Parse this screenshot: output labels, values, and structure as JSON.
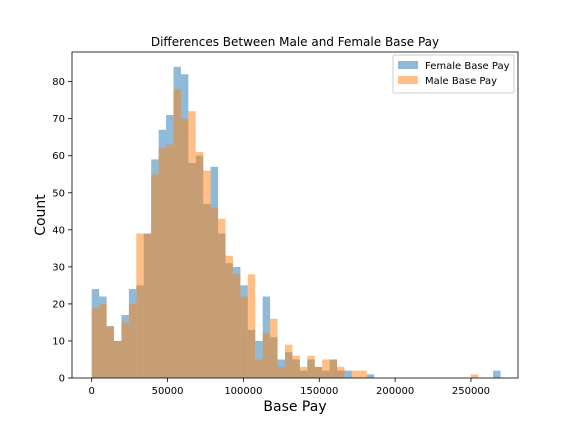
{
  "chart_data": {
    "type": "bar",
    "title": "Differences Between Male and Female Base Pay",
    "xlabel": "Base Pay",
    "ylabel": "Count",
    "xlim": [
      -13000,
      281000
    ],
    "ylim": [
      0,
      88
    ],
    "xticks": [
      0,
      50000,
      100000,
      150000,
      200000,
      250000
    ],
    "xtick_labels": [
      "0",
      "50000",
      "100000",
      "150000",
      "200000",
      "250000"
    ],
    "yticks": [
      0,
      10,
      20,
      30,
      40,
      50,
      60,
      70,
      80
    ],
    "ytick_labels": [
      "0",
      "10",
      "20",
      "30",
      "40",
      "50",
      "60",
      "70",
      "80"
    ],
    "grid": false,
    "legend_position": "top-right",
    "colors": {
      "female": "#1f77b4",
      "male": "#ff7f0e",
      "bar_alpha": 0.5
    },
    "series": [
      {
        "name": "Female Base Pay",
        "bin_start": 0,
        "bin_width": 4900,
        "counts": [
          24,
          22,
          14,
          10,
          17,
          24,
          25,
          39,
          59,
          67,
          71,
          84,
          82,
          58,
          60,
          47,
          57,
          39,
          31,
          30,
          25,
          13,
          10,
          22,
          11,
          5,
          7,
          5,
          2,
          5,
          3,
          2,
          5,
          2,
          2,
          0,
          0,
          1,
          0,
          0,
          0,
          0,
          0,
          0,
          0,
          0,
          0,
          0,
          0,
          0,
          0,
          0,
          0,
          0,
          2
        ]
      },
      {
        "name": "Male Base Pay",
        "bin_start": 0,
        "bin_width": 4900,
        "counts": [
          19,
          20,
          14,
          10,
          15,
          20,
          39,
          39,
          55,
          62,
          63,
          78,
          70,
          72,
          61,
          56,
          46,
          43,
          33,
          28,
          22,
          28,
          5,
          12,
          16,
          3,
          9,
          6,
          3,
          6,
          3,
          5,
          5,
          3,
          0,
          2,
          2,
          0,
          0,
          0,
          0,
          0,
          0,
          0,
          0,
          0,
          0,
          0,
          0,
          0,
          0,
          1,
          0,
          0,
          0
        ]
      }
    ]
  }
}
